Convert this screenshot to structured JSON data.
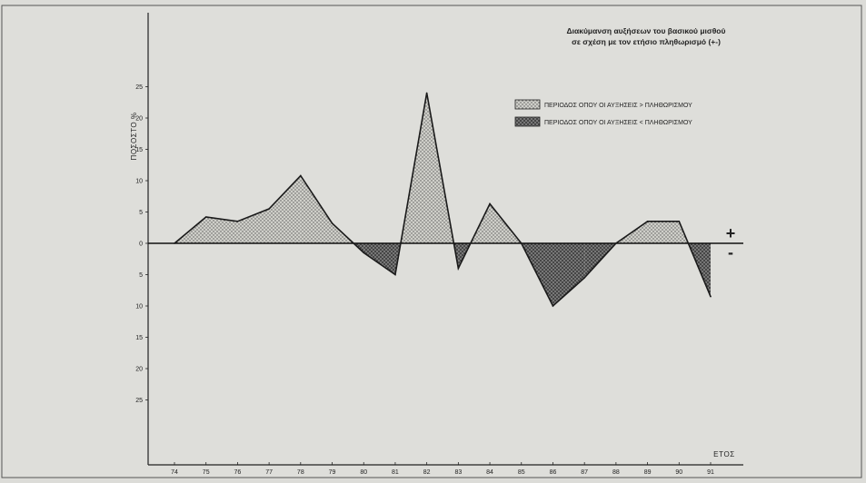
{
  "chart_data": {
    "type": "area",
    "title_line1": "Διακύμανση αυξήσεων του βασικού μισθού",
    "title_line2": "σε σχέση με τον ετήσιο πληθωρισμό (+-)",
    "ylabel": "ΠΟΣΟΣΤΟ %",
    "xlabel": "ΕΤΟΣ",
    "plus_sign": "+",
    "minus_sign": "-",
    "ylim": [
      -27,
      27
    ],
    "xlim": [
      73,
      92
    ],
    "yticks": [
      25,
      20,
      15,
      10,
      5,
      0,
      5,
      10,
      15,
      20,
      25
    ],
    "ytick_values": [
      25,
      20,
      15,
      10,
      5,
      0,
      -5,
      -10,
      -15,
      -20,
      -25
    ],
    "xticks": [
      "74",
      "75",
      "76",
      "77",
      "78",
      "79",
      "80",
      "81",
      "82",
      "83",
      "84",
      "85",
      "86",
      "87",
      "88",
      "89",
      "90",
      "91"
    ],
    "x": [
      74,
      75,
      76,
      77,
      78,
      79,
      80,
      81,
      82,
      83,
      84,
      85,
      86,
      87,
      88,
      89,
      90,
      91
    ],
    "values": [
      0,
      4.2,
      3.5,
      5.5,
      10.8,
      3.2,
      -1.5,
      -5,
      24,
      -4,
      6.3,
      0,
      -10,
      -5.5,
      0,
      3.5,
      3.5,
      -8.5
    ],
    "legend": [
      {
        "label": "ΠΕΡΙΟΔΟΣ ΟΠΟΥ ΟΙ ΑΥΞΗΣΕΙΣ > ΠΛΗΘΩΡΙΣΜΟΥ",
        "pattern": "light"
      },
      {
        "label": "ΠΕΡΙΟΔΟΣ ΟΠΟΥ ΟΙ ΑΥΞΗΣΕΙΣ < ΠΛΗΘΩΡΙΣΜΟΥ",
        "pattern": "dark"
      }
    ],
    "legend_position": "top-right",
    "grid": false,
    "colors": {
      "positive_fill": "#c8c8c2",
      "negative_fill": "#6a6a66",
      "line": "#1a1a1a"
    }
  }
}
